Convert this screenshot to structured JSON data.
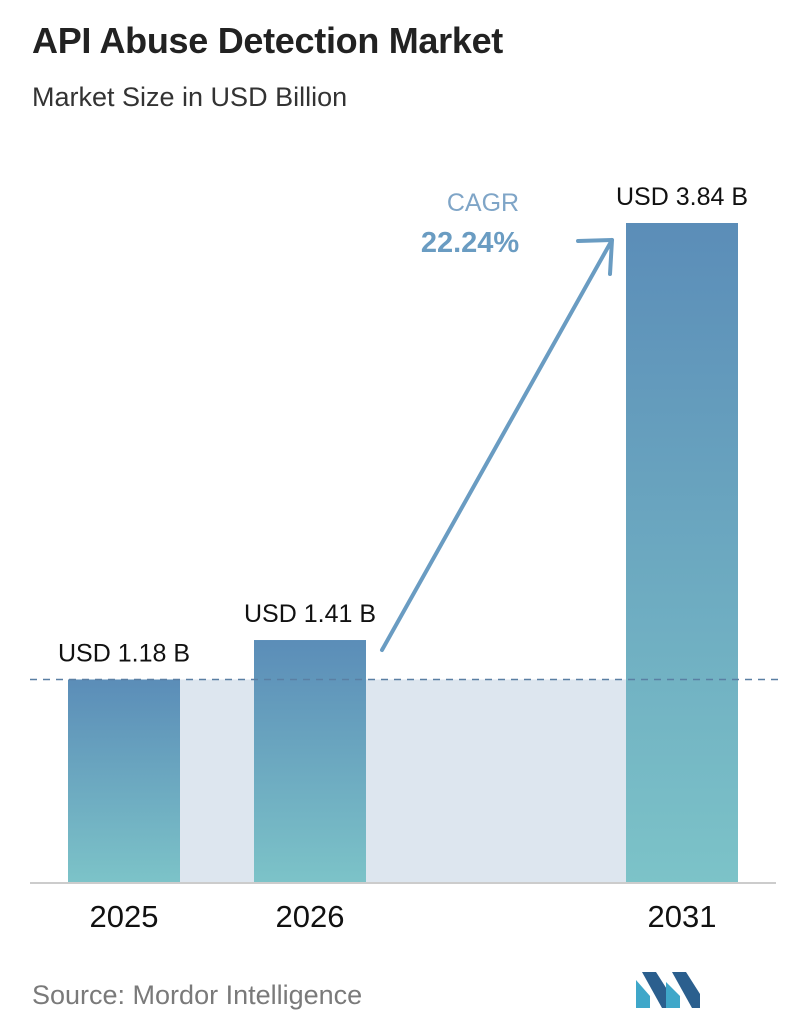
{
  "header": {
    "title": "API Abuse Detection Market",
    "subtitle": "Market Size in USD Billion"
  },
  "chart_data": {
    "type": "bar",
    "title": "API Abuse Detection Market",
    "subtitle": "Market Size in USD Billion",
    "categories": [
      "2025",
      "2026",
      "2031"
    ],
    "values": [
      1.18,
      1.41,
      3.84
    ],
    "data_labels": [
      "USD 1.18 B",
      "USD 1.41 B",
      "USD 3.84 B"
    ],
    "unit": "USD Billion",
    "ylim": [
      0,
      3.84
    ],
    "grid": false,
    "annotation": {
      "label": "CAGR",
      "value": "22.24%"
    }
  },
  "colors": {
    "bar_top": "#5b8db8",
    "bar_bottom": "#7cc3c8",
    "band": "#dde6ef",
    "arrow": "#6a9cc2",
    "cagr_label": "#7fa5c7",
    "cagr_value": "#6a9cc2",
    "baseline": "#cccccc",
    "dashed_line": "#5a7fa3"
  },
  "footer": {
    "source": "Source: Mordor Intelligence",
    "logo_icon": "mordor-intelligence-logo-icon"
  }
}
